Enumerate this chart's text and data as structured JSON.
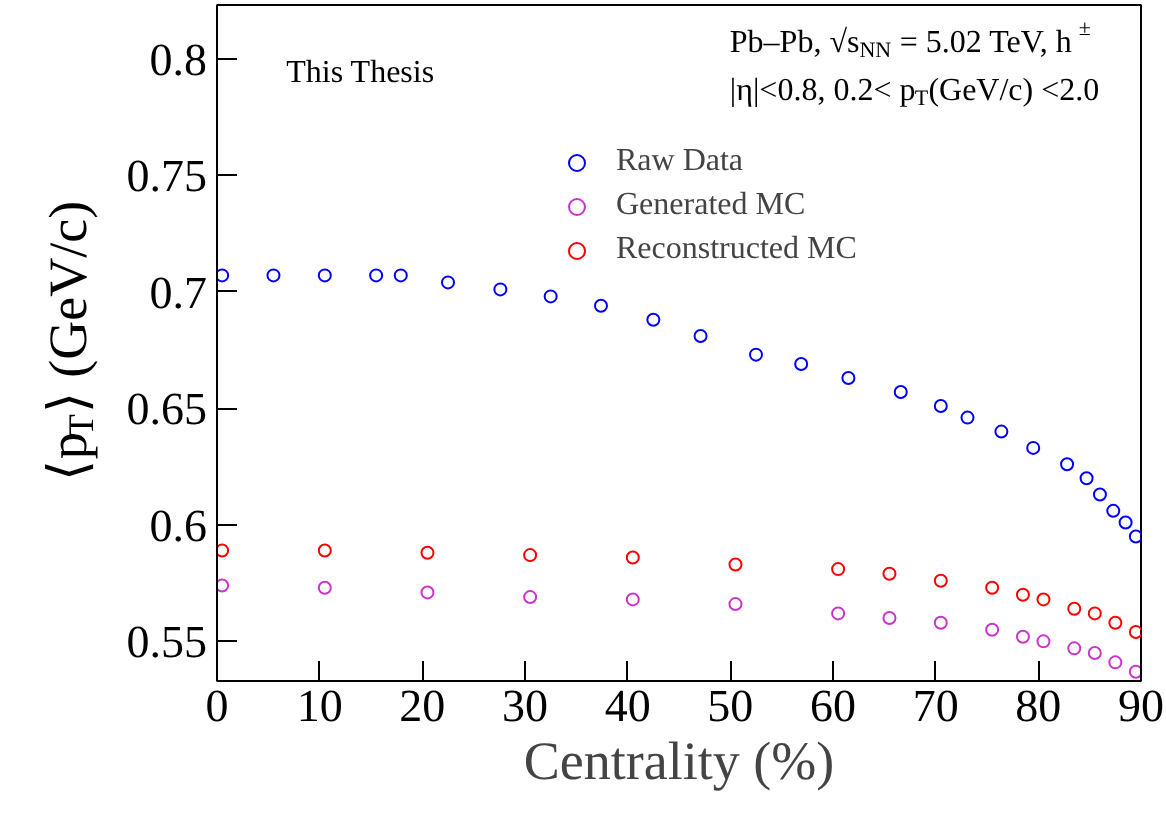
{
  "chart_data": {
    "type": "scatter",
    "xlabel": "Centrality (%)",
    "ylabel": "⟨p$_{T}$⟩ (GeV/c)",
    "xlim": [
      0,
      90
    ],
    "ylim": [
      0.533,
      0.823
    ],
    "xticks": [
      0,
      10,
      20,
      30,
      40,
      50,
      60,
      70,
      80,
      90
    ],
    "yticks": [
      0.55,
      0.6,
      0.65,
      0.7,
      0.75,
      0.8
    ],
    "grid": false,
    "legend": "top",
    "marker": "circle",
    "annotations": [
      "This Thesis",
      "Pb–Pb, √s$_{NN}$ = 5.02 TeV, h$^{±}$",
      "|η|<0.8, 0.2< p$_{T}$(GeV/c) <2.0"
    ],
    "series": [
      {
        "name": "Raw Data",
        "color": "#0000ff",
        "x": [
          0.5,
          5.5,
          10.5,
          15.5,
          17.9,
          22.5,
          27.6,
          32.5,
          37.4,
          42.5,
          47.1,
          52.5,
          56.9,
          61.5,
          66.6,
          70.5,
          73.1,
          76.4,
          79.5,
          82.8,
          84.7,
          86.0,
          87.3,
          88.5,
          89.5
        ],
        "values": [
          0.707,
          0.707,
          0.707,
          0.707,
          0.707,
          0.704,
          0.701,
          0.698,
          0.694,
          0.688,
          0.681,
          0.673,
          0.669,
          0.663,
          0.657,
          0.651,
          0.646,
          0.64,
          0.633,
          0.626,
          0.62,
          0.613,
          0.606,
          0.601,
          0.595
        ]
      },
      {
        "name": "Generated MC",
        "color": "#cc33cc",
        "x": [
          0.5,
          10.5,
          20.5,
          30.5,
          40.5,
          50.5,
          60.5,
          65.5,
          70.5,
          75.5,
          78.5,
          80.5,
          83.5,
          85.5,
          87.5,
          89.5
        ],
        "values": [
          0.574,
          0.573,
          0.571,
          0.569,
          0.568,
          0.566,
          0.562,
          0.56,
          0.558,
          0.555,
          0.552,
          0.55,
          0.547,
          0.545,
          0.541,
          0.537
        ]
      },
      {
        "name": "Reconstructed MC",
        "color": "#ff0000",
        "x": [
          0.5,
          10.5,
          20.5,
          30.5,
          40.5,
          50.5,
          60.5,
          65.5,
          70.5,
          75.5,
          78.5,
          80.5,
          83.5,
          85.5,
          87.5,
          89.5
        ],
        "values": [
          0.589,
          0.589,
          0.588,
          0.587,
          0.586,
          0.583,
          0.581,
          0.579,
          0.576,
          0.573,
          0.57,
          0.568,
          0.564,
          0.562,
          0.558,
          0.554
        ]
      }
    ]
  }
}
